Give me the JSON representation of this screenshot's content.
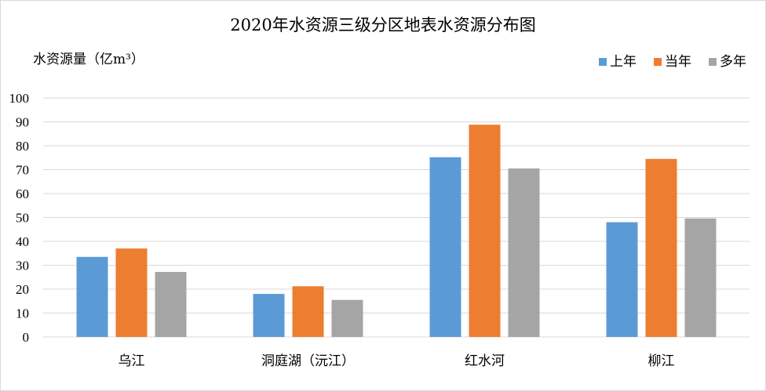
{
  "chart_data": {
    "type": "bar",
    "title": "2020年水资源三级分区地表水资源分布图",
    "ylabel": "水资源量（亿m³）",
    "xlabel": "",
    "categories": [
      "乌江",
      "洞庭湖（沅江）",
      "红水河",
      "柳江"
    ],
    "series": [
      {
        "name": "上年",
        "color": "#5b9bd5",
        "values": [
          33.5,
          18.0,
          75.2,
          48.0
        ]
      },
      {
        "name": "当年",
        "color": "#ed7d31",
        "values": [
          37.0,
          21.2,
          88.8,
          74.5
        ]
      },
      {
        "name": "多年",
        "color": "#a5a5a5",
        "values": [
          27.2,
          15.5,
          70.5,
          49.6
        ]
      }
    ],
    "ylim": [
      0,
      100
    ],
    "yticks": [
      "0",
      "10",
      "20",
      "30",
      "40",
      "50",
      "60",
      "70",
      "80",
      "90",
      "100"
    ],
    "grid": true,
    "legend_position": "top-right"
  }
}
